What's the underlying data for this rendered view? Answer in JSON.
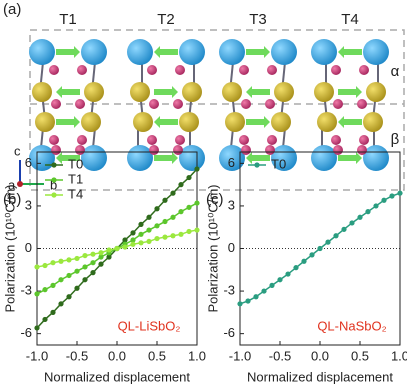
{
  "panel_a": {
    "label": "(a)",
    "columns": [
      "T1",
      "T2",
      "T3",
      "T4"
    ],
    "layers": [
      "α",
      "β"
    ],
    "axes": [
      "c",
      "a",
      "b"
    ]
  },
  "chart_data": [
    {
      "type": "line",
      "panel_label": "(b)",
      "ylabel": "Polarization (10¹⁰C/m)",
      "xlabel": "Normalized displacement",
      "annotation": "QL-LiSbO₂",
      "annotation_color": "#e0321e",
      "legend": "upper left",
      "zero_line": true,
      "x": [
        -1,
        -0.9,
        -0.8,
        -0.7,
        -0.6,
        -0.5,
        -0.4,
        -0.3,
        -0.2,
        -0.1,
        0,
        0.1,
        0.2,
        0.3,
        0.4,
        0.5,
        0.6,
        0.7,
        0.8,
        0.9,
        1
      ],
      "series": [
        {
          "name": "T0",
          "color": "#2f6b1c",
          "values": [
            -5.6,
            -5.0,
            -4.5,
            -3.9,
            -3.4,
            -2.8,
            -2.2,
            -1.7,
            -1.1,
            -0.6,
            0,
            0.6,
            1.1,
            1.7,
            2.2,
            2.8,
            3.4,
            3.9,
            4.5,
            5.0,
            5.6
          ]
        },
        {
          "name": "T1",
          "color": "#5cc62c",
          "values": [
            -3.2,
            -2.9,
            -2.6,
            -2.2,
            -1.9,
            -1.6,
            -1.3,
            -1.0,
            -0.6,
            -0.3,
            0,
            0.3,
            0.6,
            1.0,
            1.3,
            1.6,
            1.9,
            2.2,
            2.6,
            2.9,
            3.2
          ]
        },
        {
          "name": "T4",
          "color": "#9be83e",
          "values": [
            -1.3,
            -1.2,
            -1.0,
            -0.9,
            -0.8,
            -0.7,
            -0.5,
            -0.4,
            -0.3,
            -0.1,
            0,
            0.1,
            0.3,
            0.4,
            0.5,
            0.7,
            0.8,
            0.9,
            1.0,
            1.2,
            1.3
          ]
        }
      ],
      "xlim": [
        -1,
        1
      ],
      "xticks": [
        {
          "value": -1,
          "label": "-1.0"
        },
        {
          "value": -0.5,
          "label": "-0.5"
        },
        {
          "value": 0,
          "label": "0.0"
        },
        {
          "value": 0.5,
          "label": "0.5"
        },
        {
          "value": 1,
          "label": "1.0"
        }
      ],
      "ylim": [
        -6.8,
        6.8
      ],
      "yticks": [
        -6,
        -3,
        0,
        3,
        6
      ]
    },
    {
      "type": "line",
      "panel_label": "(c)",
      "ylabel": "Polarization (10¹⁰C/m)",
      "xlabel": "Normalized displacement",
      "annotation": "QL-NaSbO₂",
      "annotation_color": "#e0321e",
      "legend": "upper left",
      "zero_line": true,
      "x": [
        -1,
        -0.9,
        -0.8,
        -0.7,
        -0.6,
        -0.5,
        -0.4,
        -0.3,
        -0.2,
        -0.1,
        0,
        0.1,
        0.2,
        0.3,
        0.4,
        0.5,
        0.6,
        0.7,
        0.8,
        0.9,
        1
      ],
      "series": [
        {
          "name": "T0",
          "color": "#2a9d80",
          "values": [
            -3.9,
            -3.7,
            -3.4,
            -3.0,
            -2.6,
            -2.2,
            -1.8,
            -1.35,
            -0.9,
            -0.45,
            0,
            0.45,
            0.9,
            1.35,
            1.8,
            2.2,
            2.6,
            3.0,
            3.4,
            3.7,
            3.9
          ]
        }
      ],
      "xlim": [
        -1,
        1
      ],
      "xticks": [
        {
          "value": -1,
          "label": "-1.0"
        },
        {
          "value": -0.5,
          "label": "-0.5"
        },
        {
          "value": 0,
          "label": "0.0"
        },
        {
          "value": 0.5,
          "label": "0.5"
        },
        {
          "value": 1,
          "label": "1.0"
        }
      ],
      "ylim": [
        -6.8,
        6.8
      ],
      "yticks": [
        -6,
        -3,
        0,
        3,
        6
      ]
    }
  ]
}
